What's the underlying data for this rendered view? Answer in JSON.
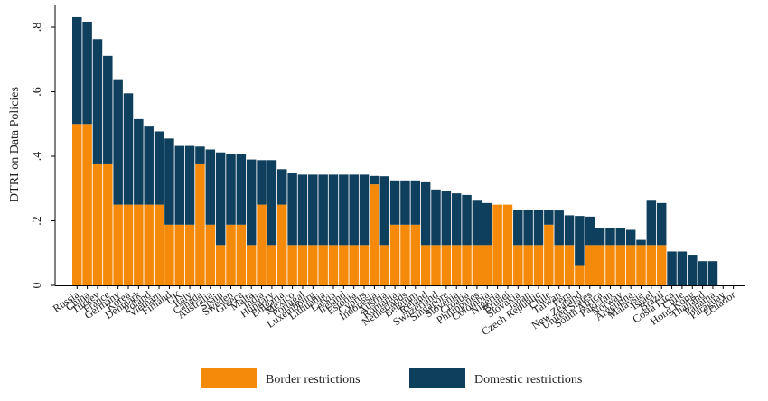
{
  "chart_data": {
    "type": "bar",
    "stacked": true,
    "ylabel": "DTRI on Data Policies",
    "xlabel": "",
    "ylim": [
      0,
      0.87
    ],
    "yticks": [
      {
        "value": 0,
        "label": "0"
      },
      {
        "value": 0.2,
        "label": ".2"
      },
      {
        "value": 0.4,
        "label": ".4"
      },
      {
        "value": 0.6,
        "label": ".6"
      },
      {
        "value": 0.8,
        "label": ".8"
      }
    ],
    "grid": false,
    "legend_position": "bottom",
    "categories": [
      "Russia",
      "China",
      "Turkey",
      "France",
      "Germany",
      "Korea",
      "Denmark",
      "Poland",
      "Vietnam",
      "Finland",
      "UK",
      "Italy",
      "Canada",
      "Australia",
      "Spain",
      "Sweden",
      "Greece",
      "Malta",
      "India",
      "Hungary",
      "Bulgaria",
      "Mexico",
      "Portugal",
      "Luxembourg",
      "Lithuania",
      "Latvia",
      "Ireland",
      "Estonia",
      "Cyprus",
      "Indonesia",
      "Austria",
      "Romania",
      "Netherlands",
      "Belgium",
      "Iceland",
      "Switzerland",
      "Singapore",
      "Slovenia",
      "Croatia",
      "Philippines",
      "Colombia",
      "Nigeria",
      "Brunei",
      "Slovakia",
      "Japan",
      "Czech Republic",
      "Chile",
      "Taiwan",
      "Peru",
      "New Zealand",
      "United States",
      "South Africa",
      "Pakistan",
      "Norway",
      "Argentina",
      "Malaysia",
      "Israel",
      "Brazil",
      "Costa Rica",
      "Chile",
      "Hong Kong",
      "Thailand",
      "Panama",
      "Paraguay",
      "Ecuador"
    ],
    "series": [
      {
        "name": "Border restrictions",
        "color": "#F58A0A",
        "values": [
          0.5,
          0.5,
          0.375,
          0.375,
          0.25,
          0.25,
          0.25,
          0.25,
          0.25,
          0.188,
          0.188,
          0.188,
          0.375,
          0.188,
          0.125,
          0.188,
          0.188,
          0.125,
          0.25,
          0.125,
          0.25,
          0.125,
          0.125,
          0.125,
          0.125,
          0.125,
          0.125,
          0.125,
          0.125,
          0.313,
          0.125,
          0.188,
          0.188,
          0.188,
          0.125,
          0.125,
          0.125,
          0.125,
          0.125,
          0.125,
          0.125,
          0.25,
          0.25,
          0.125,
          0.125,
          0.125,
          0.188,
          0.125,
          0.125,
          0.063,
          0.125,
          0.125,
          0.125,
          0.125,
          0.125,
          0.125,
          0.125,
          0.125,
          0,
          0,
          0,
          0,
          0,
          0,
          0
        ]
      },
      {
        "name": "Domestic restrictions",
        "color": "#0E3F5C",
        "values": [
          0.331,
          0.317,
          0.388,
          0.336,
          0.386,
          0.345,
          0.265,
          0.242,
          0.227,
          0.267,
          0.244,
          0.244,
          0.055,
          0.233,
          0.287,
          0.218,
          0.218,
          0.265,
          0.138,
          0.263,
          0.11,
          0.222,
          0.218,
          0.218,
          0.218,
          0.218,
          0.218,
          0.218,
          0.218,
          0.026,
          0.213,
          0.137,
          0.137,
          0.137,
          0.197,
          0.172,
          0.166,
          0.16,
          0.155,
          0.14,
          0.13,
          0,
          0,
          0.11,
          0.11,
          0.11,
          0.047,
          0.107,
          0.092,
          0.152,
          0.088,
          0.052,
          0.052,
          0.052,
          0.047,
          0.016,
          0.14,
          0.13,
          0.105,
          0.105,
          0.095,
          0.075,
          0.075,
          0,
          0
        ]
      }
    ]
  }
}
